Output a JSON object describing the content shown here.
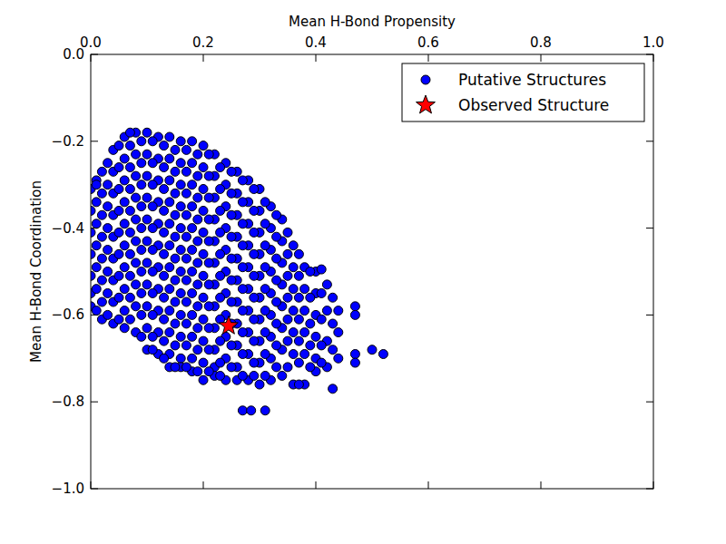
{
  "chart_data": {
    "type": "scatter",
    "x_label": "Mean H-Bond Propensity",
    "y_label": "Mean H-Bond Coordination",
    "xlim": [
      0,
      1
    ],
    "ylim": [
      -1,
      0
    ],
    "xticks": [
      {
        "value": 0,
        "label": "0.0"
      },
      0.2,
      0.4,
      0.6,
      0.8,
      {
        "value": 1,
        "label": "1.0"
      }
    ],
    "yticks": [
      {
        "value": -1,
        "label": "−1.0"
      },
      {
        "value": -0.8,
        "label": "−0.8"
      },
      {
        "value": -0.6,
        "label": "−0.6"
      },
      {
        "value": -0.4,
        "label": "−0.4"
      },
      {
        "value": -0.2,
        "label": "−0.2"
      },
      {
        "value": 0,
        "label": "0.0"
      }
    ],
    "grid": false,
    "legend": "upper right",
    "series": [
      {
        "name": "Putative Structures",
        "color": "#0000ff",
        "marker": "circle",
        "x": [
          0,
          0,
          0,
          0,
          0,
          0,
          0,
          0.02,
          0.02,
          0.02,
          0.02,
          0.02,
          0.02,
          0.02,
          0.02,
          0.04,
          0.04,
          0.04,
          0.04,
          0.04,
          0.04,
          0.04,
          0.04,
          0.04,
          0.06,
          0.06,
          0.06,
          0.06,
          0.06,
          0.06,
          0.06,
          0.06,
          0.06,
          0.06,
          0.08,
          0.08,
          0.08,
          0.08,
          0.08,
          0.08,
          0.08,
          0.08,
          0.08,
          0.08,
          0.1,
          0.1,
          0.1,
          0.1,
          0.1,
          0.1,
          0.1,
          0.1,
          0.1,
          0.1,
          0.1,
          0.12,
          0.12,
          0.12,
          0.12,
          0.12,
          0.12,
          0.12,
          0.12,
          0.12,
          0.12,
          0.12,
          0.14,
          0.14,
          0.14,
          0.14,
          0.14,
          0.14,
          0.14,
          0.14,
          0.14,
          0.14,
          0.14,
          0.14,
          0.16,
          0.16,
          0.16,
          0.16,
          0.16,
          0.16,
          0.16,
          0.16,
          0.16,
          0.16,
          0.16,
          0.16,
          0.18,
          0.18,
          0.18,
          0.18,
          0.18,
          0.18,
          0.18,
          0.18,
          0.18,
          0.18,
          0.18,
          0.18,
          0.2,
          0.2,
          0.2,
          0.2,
          0.2,
          0.2,
          0.2,
          0.2,
          0.2,
          0.2,
          0.2,
          0.2,
          0.22,
          0.22,
          0.22,
          0.22,
          0.22,
          0.22,
          0.22,
          0.22,
          0.22,
          0.22,
          0.22,
          0.22,
          0.24,
          0.24,
          0.24,
          0.24,
          0.24,
          0.24,
          0.24,
          0.24,
          0.24,
          0.24,
          0.24,
          0.26,
          0.26,
          0.26,
          0.26,
          0.26,
          0.26,
          0.26,
          0.26,
          0.26,
          0.26,
          0.26,
          0.28,
          0.28,
          0.28,
          0.28,
          0.28,
          0.28,
          0.28,
          0.28,
          0.28,
          0.28,
          0.3,
          0.3,
          0.3,
          0.3,
          0.3,
          0.3,
          0.3,
          0.3,
          0.3,
          0.3,
          0.32,
          0.32,
          0.32,
          0.32,
          0.32,
          0.32,
          0.32,
          0.32,
          0.32,
          0.34,
          0.34,
          0.34,
          0.34,
          0.34,
          0.34,
          0.34,
          0.34,
          0.36,
          0.36,
          0.36,
          0.36,
          0.36,
          0.36,
          0.36,
          0.38,
          0.38,
          0.38,
          0.38,
          0.38,
          0.38,
          0.4,
          0.4,
          0.4,
          0.4,
          0.4,
          0.4,
          0.42,
          0.42,
          0.42,
          0.42,
          0.44,
          0.44,
          0.44,
          0.01,
          0.01,
          0.01,
          0.01,
          0.01,
          0.01,
          0.01,
          0.03,
          0.03,
          0.03,
          0.03,
          0.03,
          0.03,
          0.03,
          0.03,
          0.05,
          0.05,
          0.05,
          0.05,
          0.05,
          0.05,
          0.05,
          0.05,
          0.05,
          0.07,
          0.07,
          0.07,
          0.07,
          0.07,
          0.07,
          0.07,
          0.07,
          0.07,
          0.07,
          0.09,
          0.09,
          0.09,
          0.09,
          0.09,
          0.09,
          0.09,
          0.09,
          0.09,
          0.09,
          0.11,
          0.11,
          0.11,
          0.11,
          0.11,
          0.11,
          0.11,
          0.11,
          0.11,
          0.11,
          0.11,
          0.13,
          0.13,
          0.13,
          0.13,
          0.13,
          0.13,
          0.13,
          0.13,
          0.13,
          0.13,
          0.13,
          0.15,
          0.15,
          0.15,
          0.15,
          0.15,
          0.15,
          0.15,
          0.15,
          0.15,
          0.15,
          0.15,
          0.17,
          0.17,
          0.17,
          0.17,
          0.17,
          0.17,
          0.17,
          0.17,
          0.17,
          0.17,
          0.17,
          0.19,
          0.19,
          0.19,
          0.19,
          0.19,
          0.19,
          0.19,
          0.19,
          0.19,
          0.19,
          0.19,
          0.21,
          0.21,
          0.21,
          0.21,
          0.21,
          0.21,
          0.21,
          0.21,
          0.21,
          0.21,
          0.21,
          0.23,
          0.23,
          0.23,
          0.23,
          0.23,
          0.23,
          0.23,
          0.23,
          0.23,
          0.23,
          0.23,
          0.25,
          0.25,
          0.25,
          0.25,
          0.25,
          0.25,
          0.25,
          0.25,
          0.25,
          0.25,
          0.27,
          0.27,
          0.27,
          0.27,
          0.27,
          0.27,
          0.27,
          0.27,
          0.27,
          0.27,
          0.29,
          0.29,
          0.29,
          0.29,
          0.29,
          0.29,
          0.29,
          0.29,
          0.29,
          0.29,
          0.31,
          0.31,
          0.31,
          0.31,
          0.31,
          0.31,
          0.31,
          0.31,
          0.31,
          0.33,
          0.33,
          0.33,
          0.33,
          0.33,
          0.33,
          0.33,
          0.33,
          0.35,
          0.35,
          0.35,
          0.35,
          0.35,
          0.35,
          0.35,
          0.37,
          0.37,
          0.37,
          0.37,
          0.37,
          0.37,
          0.37,
          0.39,
          0.39,
          0.39,
          0.39,
          0.39,
          0.41,
          0.41,
          0.41,
          0.41,
          0.43,
          0.43,
          0.43,
          0.43,
          0.27,
          0.285,
          0.31,
          0.47,
          0.47,
          0.47,
          0.47,
          0.5,
          0.52,
          0.41,
          0.01
        ],
        "values": [
          -0.31,
          -0.36,
          -0.41,
          -0.46,
          -0.51,
          -0.55,
          -0.58,
          -0.27,
          -0.32,
          -0.37,
          -0.42,
          -0.47,
          -0.52,
          -0.57,
          -0.61,
          -0.22,
          -0.27,
          -0.32,
          -0.37,
          -0.42,
          -0.47,
          -0.52,
          -0.57,
          -0.62,
          -0.19,
          -0.24,
          -0.29,
          -0.34,
          -0.39,
          -0.44,
          -0.49,
          -0.54,
          -0.59,
          -0.63,
          -0.18,
          -0.23,
          -0.28,
          -0.33,
          -0.38,
          -0.43,
          -0.48,
          -0.53,
          -0.58,
          -0.64,
          -0.18,
          -0.23,
          -0.28,
          -0.33,
          -0.38,
          -0.43,
          -0.48,
          -0.53,
          -0.58,
          -0.63,
          -0.68,
          -0.19,
          -0.24,
          -0.29,
          -0.34,
          -0.39,
          -0.44,
          -0.49,
          -0.54,
          -0.59,
          -0.64,
          -0.69,
          -0.19,
          -0.24,
          -0.29,
          -0.34,
          -0.39,
          -0.44,
          -0.49,
          -0.54,
          -0.59,
          -0.64,
          -0.69,
          -0.72,
          -0.2,
          -0.25,
          -0.3,
          -0.35,
          -0.4,
          -0.45,
          -0.5,
          -0.55,
          -0.6,
          -0.65,
          -0.7,
          -0.72,
          -0.2,
          -0.25,
          -0.3,
          -0.35,
          -0.4,
          -0.45,
          -0.5,
          -0.55,
          -0.6,
          -0.65,
          -0.7,
          -0.73,
          -0.21,
          -0.26,
          -0.31,
          -0.36,
          -0.41,
          -0.46,
          -0.51,
          -0.56,
          -0.61,
          -0.66,
          -0.71,
          -0.75,
          -0.23,
          -0.28,
          -0.33,
          -0.38,
          -0.43,
          -0.48,
          -0.53,
          -0.58,
          -0.63,
          -0.68,
          -0.72,
          -0.74,
          -0.25,
          -0.3,
          -0.35,
          -0.4,
          -0.45,
          -0.5,
          -0.55,
          -0.6,
          -0.65,
          -0.7,
          -0.75,
          -0.27,
          -0.32,
          -0.37,
          -0.42,
          -0.47,
          -0.52,
          -0.57,
          -0.62,
          -0.67,
          -0.72,
          -0.75,
          -0.29,
          -0.34,
          -0.39,
          -0.44,
          -0.49,
          -0.54,
          -0.59,
          -0.64,
          -0.69,
          -0.75,
          -0.31,
          -0.36,
          -0.41,
          -0.46,
          -0.51,
          -0.56,
          -0.61,
          -0.66,
          -0.71,
          -0.76,
          -0.35,
          -0.4,
          -0.45,
          -0.5,
          -0.55,
          -0.6,
          -0.65,
          -0.7,
          -0.75,
          -0.38,
          -0.43,
          -0.48,
          -0.53,
          -0.58,
          -0.63,
          -0.68,
          -0.74,
          -0.44,
          -0.49,
          -0.54,
          -0.59,
          -0.64,
          -0.69,
          -0.76,
          -0.49,
          -0.54,
          -0.59,
          -0.64,
          -0.69,
          -0.76,
          -0.5,
          -0.55,
          -0.6,
          -0.65,
          -0.7,
          -0.73,
          -0.53,
          -0.59,
          -0.66,
          -0.72,
          -0.59,
          -0.64,
          -0.7,
          -0.29,
          -0.34,
          -0.39,
          -0.44,
          -0.49,
          -0.54,
          -0.59,
          -0.25,
          -0.3,
          -0.35,
          -0.4,
          -0.45,
          -0.5,
          -0.55,
          -0.6,
          -0.21,
          -0.26,
          -0.31,
          -0.36,
          -0.41,
          -0.46,
          -0.51,
          -0.56,
          -0.61,
          -0.18,
          -0.21,
          -0.26,
          -0.31,
          -0.36,
          -0.41,
          -0.46,
          -0.51,
          -0.56,
          -0.61,
          -0.2,
          -0.25,
          -0.3,
          -0.35,
          -0.4,
          -0.45,
          -0.5,
          -0.55,
          -0.6,
          -0.65,
          -0.2,
          -0.25,
          -0.3,
          -0.35,
          -0.4,
          -0.45,
          -0.5,
          -0.55,
          -0.6,
          -0.65,
          -0.68,
          -0.21,
          -0.26,
          -0.31,
          -0.36,
          -0.41,
          -0.46,
          -0.51,
          -0.56,
          -0.61,
          -0.66,
          -0.7,
          -0.22,
          -0.27,
          -0.32,
          -0.37,
          -0.42,
          -0.47,
          -0.52,
          -0.57,
          -0.62,
          -0.67,
          -0.72,
          -0.22,
          -0.27,
          -0.32,
          -0.37,
          -0.42,
          -0.47,
          -0.52,
          -0.57,
          -0.62,
          -0.67,
          -0.72,
          -0.23,
          -0.28,
          -0.33,
          -0.38,
          -0.43,
          -0.48,
          -0.53,
          -0.58,
          -0.63,
          -0.68,
          -0.73,
          -0.23,
          -0.28,
          -0.33,
          -0.38,
          -0.43,
          -0.48,
          -0.53,
          -0.58,
          -0.63,
          -0.68,
          -0.73,
          -0.26,
          -0.31,
          -0.36,
          -0.41,
          -0.46,
          -0.51,
          -0.56,
          -0.61,
          -0.66,
          -0.71,
          -0.74,
          -0.27,
          -0.32,
          -0.37,
          -0.42,
          -0.47,
          -0.52,
          -0.57,
          -0.62,
          -0.67,
          -0.72,
          -0.29,
          -0.34,
          -0.39,
          -0.44,
          -0.49,
          -0.54,
          -0.59,
          -0.64,
          -0.69,
          -0.74,
          -0.31,
          -0.36,
          -0.41,
          -0.46,
          -0.51,
          -0.56,
          -0.61,
          -0.66,
          -0.71,
          -0.74,
          -0.34,
          -0.39,
          -0.44,
          -0.49,
          -0.54,
          -0.59,
          -0.64,
          -0.69,
          -0.74,
          -0.37,
          -0.42,
          -0.47,
          -0.52,
          -0.57,
          -0.62,
          -0.67,
          -0.72,
          -0.41,
          -0.46,
          -0.51,
          -0.56,
          -0.61,
          -0.66,
          -0.72,
          -0.46,
          -0.51,
          -0.56,
          -0.61,
          -0.66,
          -0.71,
          -0.76,
          -0.5,
          -0.56,
          -0.62,
          -0.67,
          -0.72,
          -0.55,
          -0.61,
          -0.67,
          -0.71,
          -0.56,
          -0.62,
          -0.68,
          -0.77,
          -0.82,
          -0.82,
          -0.82,
          -0.58,
          -0.6,
          -0.69,
          -0.71,
          -0.68,
          -0.69,
          -0.495,
          -0.3
        ]
      },
      {
        "name": "Observed Structure",
        "color": "#ff0000",
        "marker": "star",
        "x": [
          0.245
        ],
        "values": [
          -0.625
        ]
      }
    ]
  }
}
